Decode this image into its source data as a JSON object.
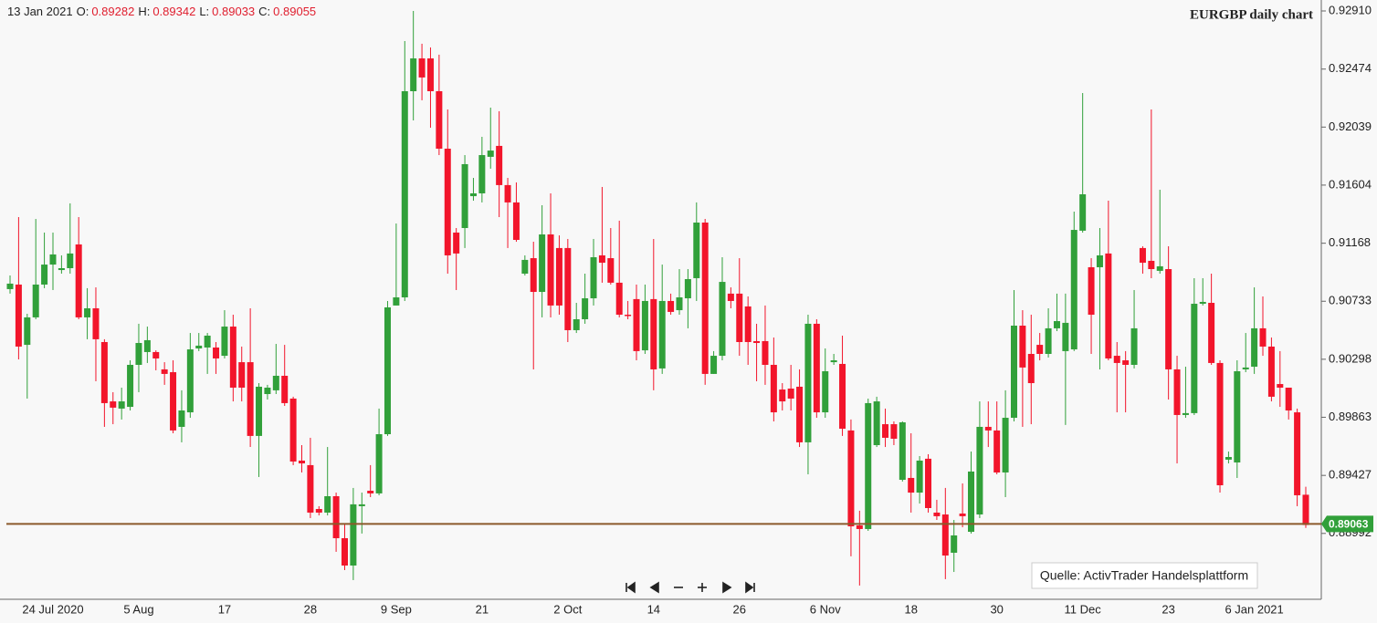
{
  "chart_data": {
    "type": "candlestick",
    "title": "EURGBP daily chart",
    "header": {
      "date": "13 Jan 2021",
      "fields": [
        {
          "label": "O:",
          "value": 0.89282
        },
        {
          "label": "H:",
          "value": 0.89342
        },
        {
          "label": "L:",
          "value": 0.89033
        },
        {
          "label": "C:",
          "value": 0.89055
        }
      ]
    },
    "source": "Quelle: ActivTrader Handelsplattform",
    "up_color": "#31a03a",
    "down_color": "#f2152b",
    "price_line": {
      "value": 0.89063,
      "color": "#8b5a2b",
      "label_color": "#31a03a"
    },
    "ylim": [
      0.88498,
      0.92992
    ],
    "yticks": [
      {
        "value": 0.9291,
        "label": "0.92910"
      },
      0.92474,
      0.92039,
      0.91604,
      0.91168,
      0.90733,
      0.90298,
      0.89863,
      0.89427,
      0.88992
    ],
    "grid": false,
    "categories": [
      null,
      null,
      null,
      null,
      null,
      "24 Jul 2020",
      null,
      null,
      null,
      null,
      null,
      null,
      null,
      null,
      null,
      "5 Aug",
      null,
      null,
      null,
      null,
      null,
      null,
      null,
      null,
      null,
      "17",
      null,
      null,
      null,
      null,
      null,
      null,
      null,
      null,
      null,
      "28",
      null,
      null,
      null,
      null,
      null,
      null,
      null,
      null,
      null,
      "9 Sep",
      null,
      null,
      null,
      null,
      null,
      null,
      null,
      null,
      null,
      "21",
      null,
      null,
      null,
      null,
      null,
      null,
      null,
      null,
      null,
      "2 Oct",
      null,
      null,
      null,
      null,
      null,
      null,
      null,
      null,
      null,
      "14",
      null,
      null,
      null,
      null,
      null,
      null,
      null,
      null,
      null,
      "26",
      null,
      null,
      null,
      null,
      null,
      null,
      null,
      null,
      null,
      "6 Nov",
      null,
      null,
      null,
      null,
      null,
      null,
      null,
      null,
      null,
      "18",
      null,
      null,
      null,
      null,
      null,
      null,
      null,
      null,
      null,
      "30",
      null,
      null,
      null,
      null,
      null,
      null,
      null,
      null,
      null,
      "11 Dec",
      null,
      null,
      null,
      null,
      null,
      null,
      null,
      null,
      null,
      "23",
      null,
      null,
      null,
      null,
      null,
      null,
      null,
      null,
      null,
      "6 Jan 2021",
      null,
      null,
      null,
      null,
      null,
      null
    ],
    "open": [
      0.90824,
      0.90858,
      0.90406,
      0.90612,
      0.90858,
      0.91008,
      0.90967,
      0.90981,
      0.91159,
      0.90612,
      0.9068,
      0.90427,
      0.89982,
      0.89928,
      0.89941,
      0.90256,
      0.90352,
      0.90352,
      0.90222,
      0.90201,
      0.89791,
      0.899,
      0.90379,
      0.90386,
      0.90386,
      0.90324,
      0.90543,
      0.90276,
      0.90276,
      0.89723,
      0.90037,
      0.90065,
      0.90174,
      0.90003,
      0.89538,
      0.89504,
      0.89175,
      0.89148,
      0.89271,
      0.88956,
      0.88751,
      0.89196,
      0.89312,
      0.89292,
      0.89736,
      0.90701,
      0.90762,
      0.92308,
      0.92554,
      0.92554,
      0.92308,
      0.91877,
      0.91248,
      0.91282,
      0.91521,
      0.91542,
      0.91816,
      0.91898,
      0.91604,
      0.91474,
      0.9094,
      0.91056,
      0.90803,
      0.91234,
      0.91132,
      0.91132,
      0.90516,
      0.90598,
      0.90755,
      0.91077,
      0.91056,
      0.90872,
      0.90632,
      0.90749,
      0.90365,
      0.90749,
      0.90229,
      0.90735,
      0.90666,
      0.90755,
      0.90906,
      0.91323,
      0.90188,
      0.90324,
      0.9079,
      0.9079,
      0.90694,
      0.90434,
      0.90434,
      0.90256,
      0.90071,
      0.90078,
      0.90092,
      0.89675,
      0.90564,
      0.899,
      0.90276,
      0.90263,
      0.89764,
      0.89052,
      0.89025,
      0.89654,
      0.89811,
      0.89811,
      0.89394,
      0.89408,
      0.89298,
      0.89552,
      0.89148,
      0.89134,
      0.88847,
      0.89141,
      0.89004,
      0.89134,
      0.89791,
      0.89764,
      0.89449,
      0.89859,
      0.9055,
      0.90338,
      0.90406,
      0.90338,
      0.9053,
      0.90359,
      0.90372,
      0.91262,
      0.90988,
      0.90988,
      0.91091,
      0.90324,
      0.9029,
      0.90256,
      0.91132,
      0.91036,
      0.90961,
      0.90974,
      0.90222,
      0.8988,
      0.89894,
      0.90714,
      0.90721,
      0.9027,
      0.89545,
      0.89524,
      0.90222,
      0.90242,
      0.9053,
      0.90393,
      0.90112,
      0.90085,
      0.899,
      0.89282
    ],
    "high": [
      0.90926,
      0.91364,
      0.90639,
      0.9135,
      0.91248,
      0.91248,
      0.91077,
      0.91467,
      0.91364,
      0.90831,
      0.90837,
      0.90448,
      0.90051,
      0.90085,
      0.9029,
      0.90564,
      0.90543,
      0.90365,
      0.90276,
      0.9029,
      0.90065,
      0.90495,
      0.90495,
      0.90495,
      0.90427,
      0.90666,
      0.90632,
      0.90393,
      0.9068,
      0.90119,
      0.90106,
      0.90413,
      0.90406,
      0.90017,
      0.89654,
      0.89709,
      0.89196,
      0.8964,
      0.89298,
      0.89059,
      0.89333,
      0.89298,
      0.89504,
      0.89928,
      0.90735,
      0.91316,
      0.92684,
      0.9291,
      0.92664,
      0.92636,
      0.92582,
      0.92171,
      0.91282,
      0.91829,
      0.91658,
      0.91966,
      0.92185,
      0.92158,
      0.91658,
      0.91624,
      0.91077,
      0.91179,
      0.91453,
      0.91542,
      0.91227,
      0.912,
      0.90721,
      0.9094,
      0.912,
      0.9159,
      0.91282,
      0.91337,
      0.90735,
      0.90858,
      0.90858,
      0.912,
      0.91008,
      0.9079,
      0.90974,
      0.90974,
      0.91474,
      0.9135,
      0.90359,
      0.91063,
      0.90837,
      0.91056,
      0.90769,
      0.90564,
      0.90701,
      0.90461,
      0.90119,
      0.90256,
      0.90222,
      0.90632,
      0.90598,
      0.90379,
      0.90338,
      0.90475,
      0.89846,
      0.89162,
      0.90003,
      0.90017,
      0.89928,
      0.89832,
      0.89832,
      0.89743,
      0.89572,
      0.89586,
      0.89244,
      0.89333,
      0.89093,
      0.89367,
      0.89606,
      0.89982,
      0.89982,
      0.89982,
      0.90065,
      0.90817,
      0.90666,
      0.90632,
      0.90495,
      0.9068,
      0.9079,
      0.9079,
      0.91405,
      0.92294,
      0.91056,
      0.91282,
      0.91487,
      0.90427,
      0.90359,
      0.90817,
      0.91145,
      0.92171,
      0.91569,
      0.91145,
      0.90324,
      0.90242,
      0.90906,
      0.90906,
      0.9094,
      0.9029,
      0.89606,
      0.9029,
      0.90495,
      0.90837,
      0.90769,
      0.90461,
      0.90359,
      0.90085,
      0.89928,
      0.89342
    ],
    "low": [
      0.9079,
      0.90297,
      0.90003,
      0.90598,
      0.90831,
      0.90817,
      0.9094,
      0.9094,
      0.90598,
      0.90448,
      0.90133,
      0.89791,
      0.89811,
      0.89846,
      0.89914,
      0.90051,
      0.9027,
      0.90215,
      0.90106,
      0.89743,
      0.89675,
      0.89859,
      0.90359,
      0.90188,
      0.90188,
      0.90304,
      0.89982,
      0.89982,
      0.8964,
      0.89415,
      0.89996,
      0.90037,
      0.89948,
      0.89504,
      0.89449,
      0.89107,
      0.89127,
      0.89127,
      0.88854,
      0.88717,
      0.88642,
      0.88991,
      0.89264,
      0.89278,
      0.89723,
      0.90701,
      0.90735,
      0.92089,
      0.9224,
      0.92034,
      0.91829,
      0.9094,
      0.90817,
      0.91132,
      0.91487,
      0.91474,
      0.91727,
      0.91364,
      0.91132,
      0.91179,
      0.90926,
      0.90222,
      0.90612,
      0.90612,
      0.90632,
      0.90427,
      0.90495,
      0.90564,
      0.90701,
      0.90872,
      0.90858,
      0.90612,
      0.90598,
      0.9029,
      0.90338,
      0.90065,
      0.90188,
      0.90632,
      0.90632,
      0.9053,
      0.90735,
      0.90106,
      0.90188,
      0.9029,
      0.9068,
      0.90324,
      0.90256,
      0.90133,
      0.90106,
      0.89832,
      0.89914,
      0.89914,
      0.8964,
      0.89435,
      0.89859,
      0.89859,
      0.90256,
      0.89723,
      0.8882,
      0.88601,
      0.89011,
      0.8964,
      0.8964,
      0.89654,
      0.89381,
      0.89148,
      0.89216,
      0.89148,
      0.89093,
      0.88649,
      0.88703,
      0.89038,
      0.88991,
      0.89107,
      0.8964,
      0.89435,
      0.89264,
      0.89832,
      0.89791,
      0.89811,
      0.9029,
      0.90311,
      0.90509,
      0.89805,
      0.90359,
      0.91248,
      0.90338,
      0.90222,
      0.9029,
      0.899,
      0.899,
      0.90229,
      0.9094,
      0.90906,
      0.9094,
      0.89996,
      0.89517,
      0.89859,
      0.8988,
      0.90701,
      0.90256,
      0.89298,
      0.89517,
      0.89408,
      0.90201,
      0.90188,
      0.90324,
      0.89982,
      0.89941,
      0.89846,
      0.89196,
      0.89033
    ],
    "close": [
      0.90865,
      0.90393,
      0.90612,
      0.90858,
      0.91008,
      0.91084,
      0.90981,
      0.91091,
      0.90612,
      0.9068,
      0.90448,
      0.89969,
      0.89935,
      0.89982,
      0.90256,
      0.9042,
      0.90441,
      0.90304,
      0.90188,
      0.89764,
      0.89914,
      0.90372,
      0.904,
      0.90475,
      0.90304,
      0.90543,
      0.90085,
      0.90085,
      0.89723,
      0.90092,
      0.90085,
      0.90174,
      0.89969,
      0.89531,
      0.89517,
      0.89148,
      0.89148,
      0.89271,
      0.88956,
      0.88751,
      0.8921,
      0.8921,
      0.89292,
      0.89736,
      0.90687,
      0.90762,
      0.92308,
      0.92554,
      0.92411,
      0.92308,
      0.91877,
      0.91077,
      0.91091,
      0.91761,
      0.91542,
      0.91829,
      0.91863,
      0.91604,
      0.91474,
      0.91193,
      0.91043,
      0.90803,
      0.91234,
      0.90701,
      0.90701,
      0.90516,
      0.90598,
      0.90755,
      0.91063,
      0.91022,
      0.90872,
      0.90632,
      0.90625,
      0.90359,
      0.90735,
      0.90222,
      0.90735,
      0.90653,
      0.90762,
      0.90899,
      0.91323,
      0.90188,
      0.90324,
      0.90878,
      0.90735,
      0.90427,
      0.90427,
      0.9042,
      0.90256,
      0.899,
      0.89982,
      0.90003,
      0.89675,
      0.90564,
      0.899,
      0.90208,
      0.9029,
      0.89777,
      0.89045,
      0.89025,
      0.89969,
      0.89982,
      0.89709,
      0.89702,
      0.89825,
      0.89298,
      0.89538,
      0.89182,
      0.89121,
      0.88826,
      0.88977,
      0.89121,
      0.89456,
      0.89791,
      0.89764,
      0.89449,
      0.89859,
      0.9055,
      0.90236,
      0.90119,
      0.90338,
      0.9053,
      0.90584,
      0.90571,
      0.91268,
      0.91535,
      0.90632,
      0.91077,
      0.90304,
      0.9027,
      0.90256,
      0.9053,
      0.91022,
      0.90974,
      0.90995,
      0.90222,
      0.8988,
      0.89894,
      0.90714,
      0.90728,
      0.9027,
      0.89353,
      0.89565,
      0.90208,
      0.90236,
      0.9053,
      0.90393,
      0.90017,
      0.90085,
      0.89914,
      0.89278,
      0.89055
    ]
  }
}
